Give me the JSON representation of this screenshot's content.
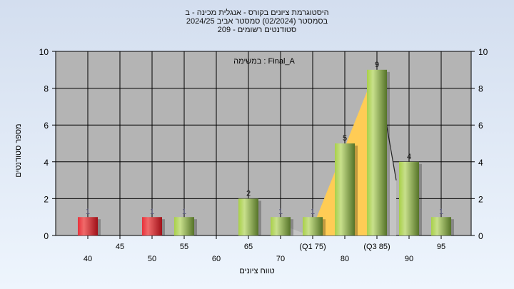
{
  "title_lines": [
    "היסטוגרמת ציונים בקורס - אנגלית מכינה - ב",
    "בסמסטר  (02/2024)  סמסטר אביב 2024/25",
    "סטודנטים רשומים - 209"
  ],
  "chart_data": {
    "type": "bar",
    "subtitle": "במשימה : Final_A",
    "xlabel": "טווח ציונים",
    "ylabel": "מספר סטודנטים",
    "ylim": [
      0,
      10
    ],
    "yticks": [
      0,
      2,
      4,
      6,
      8,
      10
    ],
    "grid": true,
    "xticks": [
      {
        "x": 40,
        "label": "40",
        "row": 2
      },
      {
        "x": 45,
        "label": "45",
        "row": 1
      },
      {
        "x": 50,
        "label": "50",
        "row": 2
      },
      {
        "x": 55,
        "label": "55",
        "row": 1
      },
      {
        "x": 60,
        "label": "60",
        "row": 2
      },
      {
        "x": 65,
        "label": "65",
        "row": 1
      },
      {
        "x": 70,
        "label": "70",
        "row": 2
      },
      {
        "x": 75,
        "label": "(Q1 75)",
        "row": 1
      },
      {
        "x": 80,
        "label": "80",
        "row": 2
      },
      {
        "x": 85,
        "label": "(Q3 85)",
        "row": 1
      },
      {
        "x": 90,
        "label": "90",
        "row": 2
      },
      {
        "x": 95,
        "label": "95",
        "row": 1
      }
    ],
    "bars": [
      {
        "x": 40,
        "value": 1,
        "color": "#e0303a"
      },
      {
        "x": 50,
        "value": 1,
        "color": "#e0303a"
      },
      {
        "x": 55,
        "value": 1,
        "color": "#9cc24a"
      },
      {
        "x": 65,
        "value": 2,
        "color": "#9cc24a"
      },
      {
        "x": 70,
        "value": 1,
        "color": "#9cc24a"
      },
      {
        "x": 75,
        "value": 1,
        "color": "#9cc24a"
      },
      {
        "x": 80,
        "value": 5,
        "color": "#9cc24a"
      },
      {
        "x": 85,
        "value": 9,
        "color": "#9cc24a"
      },
      {
        "x": 90,
        "value": 4,
        "color": "#9cc24a"
      },
      {
        "x": 95,
        "value": 1,
        "color": "#9cc24a"
      }
    ],
    "quartile_area_color": "#ffcc55"
  }
}
